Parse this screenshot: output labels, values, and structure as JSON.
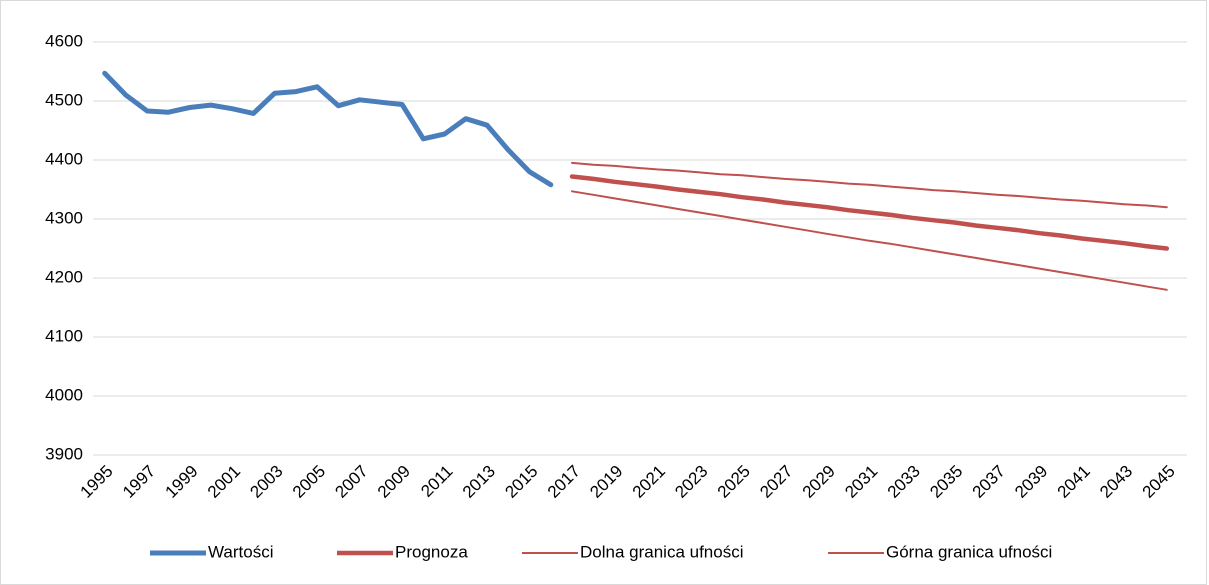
{
  "chart_data": {
    "type": "line",
    "categories": [
      "1995",
      null,
      "1997",
      null,
      "1999",
      null,
      "2001",
      null,
      "2003",
      null,
      "2005",
      null,
      "2007",
      null,
      "2009",
      null,
      "2011",
      null,
      "2013",
      null,
      "2015",
      null,
      "2017",
      null,
      "2019",
      null,
      "2021",
      null,
      "2023",
      null,
      "2025",
      null,
      "2027",
      null,
      "2029",
      null,
      "2031",
      null,
      "2033",
      null,
      "2035",
      null,
      "2037",
      null,
      "2039",
      null,
      "2041",
      null,
      "2043",
      null,
      "2045"
    ],
    "series": [
      {
        "name": "Wartości",
        "color": "#4a7ebb",
        "line_width": 5,
        "values": [
          4547,
          4510,
          4483,
          4481,
          4489,
          4493,
          4487,
          4479,
          4513,
          4516,
          4524,
          4492,
          4502,
          4498,
          4494,
          4436,
          4444,
          4470,
          4459,
          4417,
          4380,
          4358,
          null,
          null,
          null,
          null,
          null,
          null,
          null,
          null,
          null,
          null,
          null,
          null,
          null,
          null,
          null,
          null,
          null,
          null,
          null,
          null,
          null,
          null,
          null,
          null,
          null,
          null,
          null,
          null,
          null
        ]
      },
      {
        "name": "Prognoza",
        "color": "#c0504d",
        "line_width": 4.5,
        "values": [
          null,
          null,
          null,
          null,
          null,
          null,
          null,
          null,
          null,
          null,
          null,
          null,
          null,
          null,
          null,
          null,
          null,
          null,
          null,
          null,
          null,
          null,
          4372,
          4368,
          4363,
          4359,
          4355,
          4350,
          4346,
          4342,
          4337,
          4333,
          4328,
          4324,
          4320,
          4315,
          4311,
          4307,
          4302,
          4298,
          4294,
          4289,
          4285,
          4281,
          4276,
          4272,
          4267,
          4263,
          4259,
          4254,
          4250
        ]
      },
      {
        "name": "Dolna granica ufności",
        "color": "#c0504d",
        "line_width": 2,
        "values": [
          null,
          null,
          null,
          null,
          null,
          null,
          null,
          null,
          null,
          null,
          null,
          null,
          null,
          null,
          null,
          null,
          null,
          null,
          null,
          null,
          null,
          null,
          4347,
          4341,
          4335,
          4329,
          4323,
          4317,
          4311,
          4305,
          4299,
          4293,
          4287,
          4281,
          4275,
          4269,
          4263,
          4258,
          4252,
          4246,
          4240,
          4234,
          4228,
          4222,
          4216,
          4210,
          4204,
          4198,
          4192,
          4186,
          4180
        ]
      },
      {
        "name": "Górna granica ufności",
        "color": "#c0504d",
        "line_width": 2,
        "values": [
          null,
          null,
          null,
          null,
          null,
          null,
          null,
          null,
          null,
          null,
          null,
          null,
          null,
          null,
          null,
          null,
          null,
          null,
          null,
          null,
          null,
          null,
          4395,
          4392,
          4390,
          4387,
          4384,
          4382,
          4379,
          4376,
          4374,
          4371,
          4368,
          4366,
          4363,
          4360,
          4358,
          4355,
          4352,
          4349,
          4347,
          4344,
          4341,
          4339,
          4336,
          4333,
          4331,
          4328,
          4325,
          4323,
          4320
        ]
      }
    ],
    "ylim": [
      3900,
      4600
    ],
    "yticks": [
      3900,
      4000,
      4100,
      4200,
      4300,
      4400,
      4500,
      4600
    ],
    "grid": true,
    "legend": "bottom"
  }
}
